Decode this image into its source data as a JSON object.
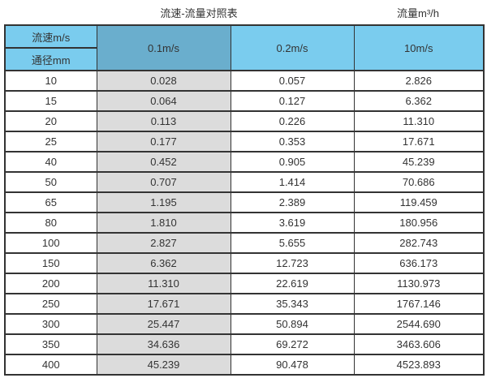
{
  "page": {
    "title_left": "流速-流量对照表",
    "title_right": "流量m³/h"
  },
  "colors": {
    "header_cyan": "#7accee",
    "header_highlight_blue": "#6aaecd",
    "column_grey": "#dcdcdc",
    "border": "#333333",
    "text": "#333333"
  },
  "table": {
    "corner_top_label": "流速m/s",
    "corner_bottom_label": "通径mm",
    "velocity_columns": [
      "0.1m/s",
      "0.2m/s",
      "10m/s"
    ],
    "rows": [
      [
        "10",
        "0.028",
        "0.057",
        "2.826"
      ],
      [
        "15",
        "0.064",
        "0.127",
        "6.362"
      ],
      [
        "20",
        "0.113",
        "0.226",
        "11.310"
      ],
      [
        "25",
        "0.177",
        "0.353",
        "17.671"
      ],
      [
        "40",
        "0.452",
        "0.905",
        "45.239"
      ],
      [
        "50",
        "0.707",
        "1.414",
        "70.686"
      ],
      [
        "65",
        "1.195",
        "2.389",
        "119.459"
      ],
      [
        "80",
        "1.810",
        "3.619",
        "180.956"
      ],
      [
        "100",
        "2.827",
        "5.655",
        "282.743"
      ],
      [
        "150",
        "6.362",
        "12.723",
        "636.173"
      ],
      [
        "200",
        "11.310",
        "22.619",
        "1130.973"
      ],
      [
        "250",
        "17.671",
        "35.343",
        "1767.146"
      ],
      [
        "300",
        "25.447",
        "50.894",
        "2544.690"
      ],
      [
        "350",
        "34.636",
        "69.272",
        "3463.606"
      ],
      [
        "400",
        "45.239",
        "90.478",
        "4523.893"
      ]
    ]
  }
}
